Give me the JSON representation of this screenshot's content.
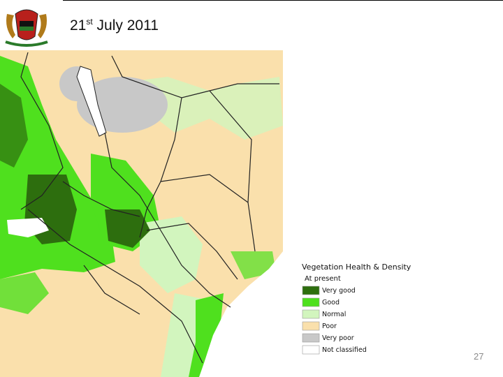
{
  "header": {
    "date_day": "21",
    "date_suffix": "st",
    "date_rest": "July 2011"
  },
  "legend": {
    "title": "Vegetation Health & Density",
    "subtitle": "At present",
    "items": [
      {
        "label": "Very good",
        "color": "#2d6e0e"
      },
      {
        "label": "Good",
        "color": "#4fe01e"
      },
      {
        "label": "Normal",
        "color": "#d2f5be"
      },
      {
        "label": "Poor",
        "color": "#fae0ac"
      },
      {
        "label": "Very poor",
        "color": "#c8c8c8"
      },
      {
        "label": "Not classified",
        "color": "#ffffff"
      }
    ]
  },
  "footer": {
    "page_number": "27"
  }
}
